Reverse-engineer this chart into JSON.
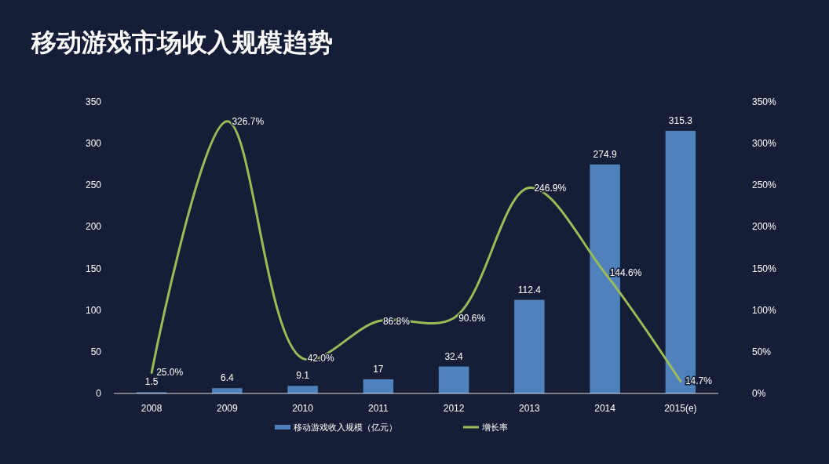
{
  "chart_data": {
    "type": "bar",
    "title": "移动游戏市场收入规模趋势",
    "categories": [
      "2008",
      "2009",
      "2010",
      "2011",
      "2012",
      "2013",
      "2014",
      "2015(e)"
    ],
    "series": [
      {
        "name": "移动游戏收入规模（亿元）",
        "color": "#4f81bd",
        "values": [
          1.5,
          6.4,
          9.1,
          17,
          32.4,
          112.4,
          274.9,
          315.3
        ],
        "value_labels": [
          "1.5",
          "6.4",
          "9.1",
          "17",
          "32.4",
          "112.4",
          "274.9",
          "315.3"
        ]
      },
      {
        "name": "增长率",
        "type": "line",
        "axis": "y2",
        "color": "#9bbb59",
        "values": [
          25.0,
          326.7,
          42.0,
          86.8,
          90.6,
          246.9,
          144.6,
          14.7
        ],
        "value_labels": [
          "25.0%",
          "326.7%",
          "42.0%",
          "86.8%",
          "90.6%",
          "246.9%",
          "144.6%",
          "14.7%"
        ]
      }
    ],
    "ylim": [
      0,
      350
    ],
    "yticks": [
      0,
      50,
      100,
      150,
      200,
      250,
      300,
      350
    ],
    "y2lim": [
      0,
      350
    ],
    "y2ticks": [
      {
        "value": 0,
        "label": "0%"
      },
      {
        "value": 50,
        "label": "50%"
      },
      {
        "value": 100,
        "label": "100%"
      },
      {
        "value": 150,
        "label": "150%"
      },
      {
        "value": 200,
        "label": "200%"
      },
      {
        "value": 250,
        "label": "250%"
      },
      {
        "value": 300,
        "label": "300%"
      },
      {
        "value": 350,
        "label": "350%"
      }
    ],
    "legend": "bottom",
    "marker": "none",
    "grid": false
  }
}
